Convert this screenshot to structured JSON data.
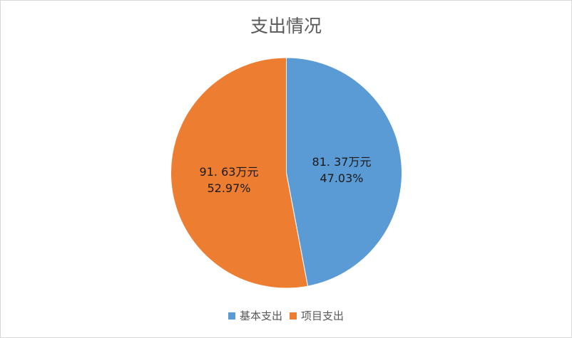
{
  "chart_data": {
    "type": "pie",
    "title": "支出情况",
    "categories": [
      "基本支出",
      "项目支出"
    ],
    "values": [
      81.37,
      91.63
    ],
    "percentages": [
      47.03,
      52.97
    ],
    "data_labels": [
      {
        "value": "81. 37万元",
        "percent": "47.03%"
      },
      {
        "value": "91. 63万元",
        "percent": "52.97%"
      }
    ],
    "colors": [
      "#5B9BD5",
      "#ED7D31"
    ],
    "legend_position": "bottom"
  }
}
